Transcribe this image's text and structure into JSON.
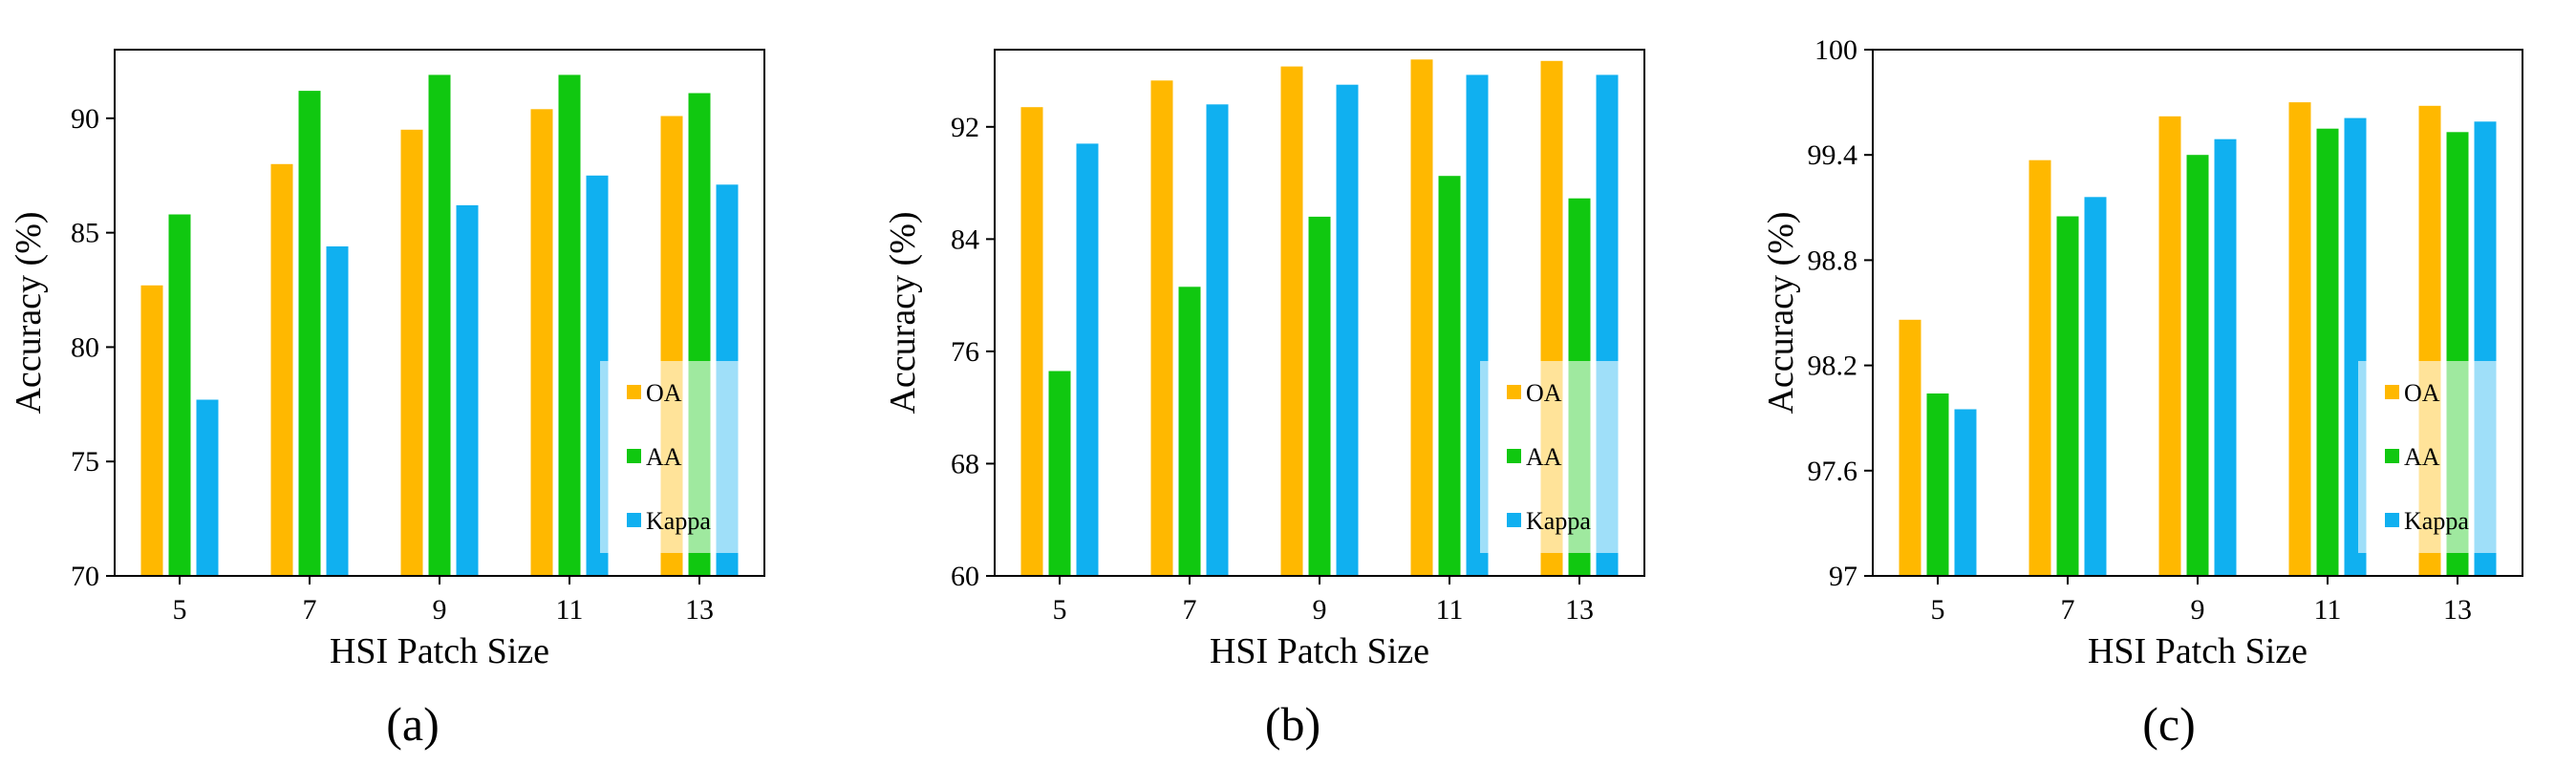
{
  "legend_colors": {
    "OA": "#FFB800",
    "AA": "#10C810",
    "Kappa": "#10B0F0"
  },
  "chart_data": [
    {
      "type": "bar",
      "caption": "(a)",
      "xlabel": "HSI Patch Size",
      "ylabel": "Accuracy (%)",
      "categories": [
        "5",
        "7",
        "9",
        "11",
        "13"
      ],
      "ylim": [
        70,
        93
      ],
      "yticks": [
        70,
        75,
        80,
        85,
        90
      ],
      "ytick_labels": [
        "70",
        "75",
        "80",
        "85",
        "90"
      ],
      "series": [
        {
          "name": "OA",
          "values": [
            82.7,
            88.0,
            89.5,
            90.4,
            90.1
          ]
        },
        {
          "name": "AA",
          "values": [
            85.8,
            91.2,
            91.9,
            91.9,
            91.1
          ]
        },
        {
          "name": "Kappa",
          "values": [
            77.7,
            84.4,
            86.2,
            87.5,
            87.1
          ]
        }
      ],
      "legend": {
        "position": "bottom-right",
        "labels": [
          "OA",
          "AA",
          "Kappa"
        ]
      }
    },
    {
      "type": "bar",
      "caption": "(b)",
      "xlabel": "HSI Patch Size",
      "ylabel": "Accuracy (%)",
      "categories": [
        "5",
        "7",
        "9",
        "11",
        "13"
      ],
      "ylim": [
        60,
        97.5
      ],
      "yticks": [
        60,
        68,
        76,
        84,
        92
      ],
      "ytick_labels": [
        "60",
        "68",
        "76",
        "84",
        "92"
      ],
      "series": [
        {
          "name": "OA",
          "values": [
            93.4,
            95.3,
            96.3,
            96.8,
            96.7
          ]
        },
        {
          "name": "AA",
          "values": [
            74.6,
            80.6,
            85.6,
            88.5,
            86.9
          ]
        },
        {
          "name": "Kappa",
          "values": [
            90.8,
            93.6,
            95.0,
            95.7,
            95.7
          ]
        }
      ],
      "legend": {
        "position": "bottom-right",
        "labels": [
          "OA",
          "AA",
          "Kappa"
        ]
      }
    },
    {
      "type": "bar",
      "caption": "(c)",
      "xlabel": "HSI Patch Size",
      "ylabel": "Accuracy (%)",
      "categories": [
        "5",
        "7",
        "9",
        "11",
        "13"
      ],
      "ylim": [
        97,
        100
      ],
      "yticks": [
        97,
        97.6,
        98.2,
        98.8,
        99.4,
        100
      ],
      "ytick_labels": [
        "97",
        "97.6",
        "98.2",
        "98.8",
        "99.4",
        "100"
      ],
      "series": [
        {
          "name": "OA",
          "values": [
            98.46,
            99.37,
            99.62,
            99.7,
            99.68
          ]
        },
        {
          "name": "AA",
          "values": [
            98.04,
            99.05,
            99.4,
            99.55,
            99.53
          ]
        },
        {
          "name": "Kappa",
          "values": [
            97.95,
            99.16,
            99.49,
            99.61,
            99.59
          ]
        }
      ],
      "legend": {
        "position": "bottom-right",
        "labels": [
          "OA",
          "AA",
          "Kappa"
        ]
      }
    }
  ]
}
